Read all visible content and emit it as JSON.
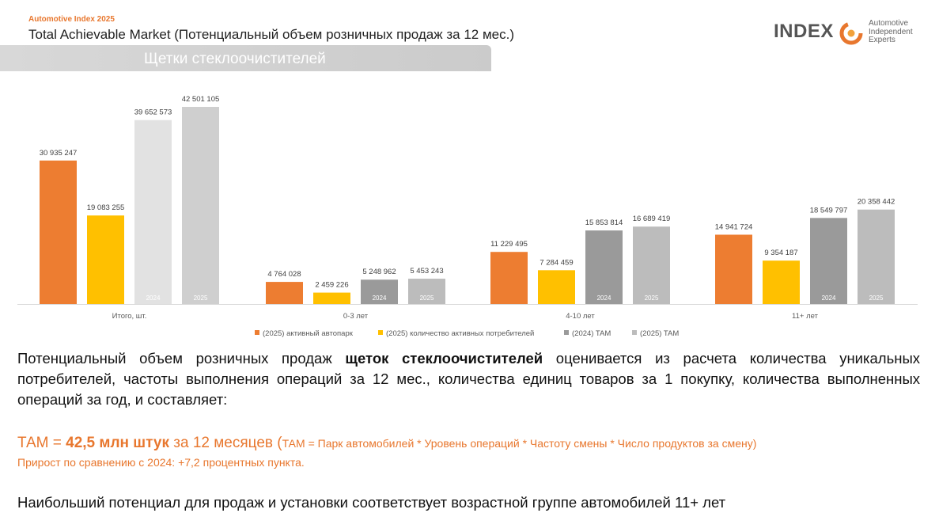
{
  "header": {
    "kicker": "Automotive Index 2025",
    "title": "Total Achievable Market (Потенциальный объем розничных продаж за 12 мес.)",
    "banner": "Щетки стеклоочистителей"
  },
  "logo": {
    "word": "INDEX",
    "line1": "Automotive",
    "line2": "Independent",
    "line3": "Experts",
    "accent": "#e8772e",
    "icon": "gear-swirl-icon"
  },
  "chart_data": {
    "type": "bar",
    "title": "",
    "xlabel": "",
    "ylabel": "",
    "categories": [
      "Итого, шт.",
      "0-3 лет",
      "4-10 лет",
      "11+ лет"
    ],
    "series": [
      {
        "name": "(2025) активный автопарк",
        "color": "#ed7d31",
        "values": [
          30935247,
          4764028,
          11229495,
          14941724
        ],
        "labels": [
          "30 935 247",
          "4 764 028",
          "11 229 495",
          "14 941 724"
        ]
      },
      {
        "name": "(2025) количество активных потребителей",
        "color": "#ffc000",
        "values": [
          19083255,
          2459226,
          7284459,
          9354187
        ],
        "labels": [
          "19 083 255",
          "2 459 226",
          "7 284 459",
          "9 354 187"
        ]
      },
      {
        "name": "(2024) TAM",
        "color": "#9a9a9a",
        "values": [
          39652573,
          5248962,
          15853814,
          18549797
        ],
        "labels": [
          "39 652 573",
          "5 248 962",
          "15 853 814",
          "18 549 797"
        ],
        "bar_text": "2024"
      },
      {
        "name": "(2025) TAM",
        "color": "#bcbcbc",
        "values": [
          42501105,
          5453243,
          16689419,
          20358442
        ],
        "labels": [
          "42 501 105",
          "5 453 243",
          "16 689 419",
          "20 358 442"
        ],
        "bar_text": "2025"
      }
    ],
    "first_group_tam_colors": [
      "#e2e2e2",
      "#cfcfcf"
    ],
    "ylim": [
      0,
      42501105
    ],
    "grid": false,
    "legend_position": "bottom"
  },
  "text": {
    "p1_a": "Потенциальный объем розничных продаж ",
    "p1_b": "щеток стеклоочистителей",
    "p1_c": " оценивается из расчета количества уникальных потребителей, частоты выполнения операций за 12 мес., количества единиц товаров за 1 покупку, количества выполненных операций за год, и составляет:",
    "tam_a": "ТАМ = ",
    "tam_b": "42,5 млн штук",
    "tam_c": " за 12 месяцев (",
    "tam_d": "ТАМ = Парк автомобилей * Уровень операций * Частоту смены * Число продуктов за смену)",
    "growth": "Прирост по сравнению с 2024: +7,2 процентных пункта.",
    "conclusion": "Наибольший потенциал для продаж и установки соответствует возрастной группе автомобилей 11+ лет"
  }
}
